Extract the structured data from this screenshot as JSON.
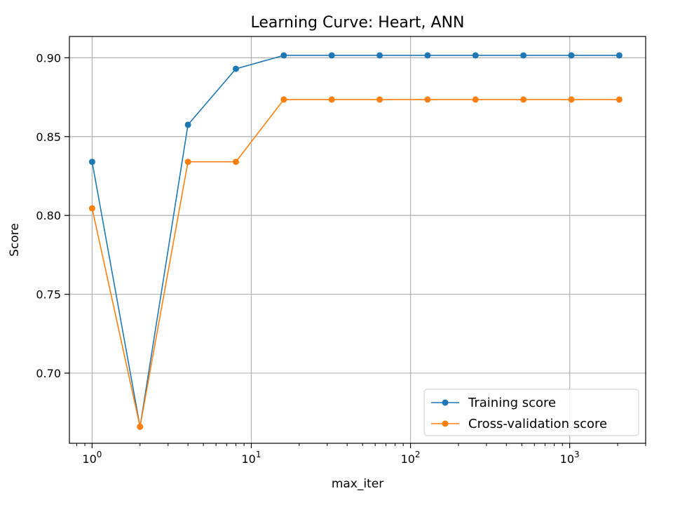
{
  "chart_data": {
    "type": "line",
    "title": "Learning Curve: Heart, ANN",
    "xlabel": "max_iter",
    "ylabel": "Score",
    "x_scale": "log",
    "xlim": [
      0.72,
      3000
    ],
    "ylim": [
      0.6555,
      0.9135
    ],
    "grid": true,
    "legend_position": "lower-right",
    "x_tick_labels": [
      {
        "base": "10",
        "exp": "0",
        "value": 1
      },
      {
        "base": "10",
        "exp": "1",
        "value": 10
      },
      {
        "base": "10",
        "exp": "2",
        "value": 100
      },
      {
        "base": "10",
        "exp": "3",
        "value": 1000
      }
    ],
    "y_ticks": [
      0.7,
      0.75,
      0.8,
      0.85,
      0.9
    ],
    "y_tick_labels": [
      "0.70",
      "0.75",
      "0.80",
      "0.85",
      "0.90"
    ],
    "x": [
      1,
      2,
      4,
      8,
      16,
      32,
      64,
      128,
      256,
      512,
      1024,
      2048
    ],
    "series": [
      {
        "name": "Training score",
        "color": "#1f77b4",
        "values": [
          0.834,
          0.666,
          0.8575,
          0.893,
          0.9015,
          0.9015,
          0.9015,
          0.9015,
          0.9015,
          0.9015,
          0.9015,
          0.9015
        ]
      },
      {
        "name": "Cross-validation score",
        "color": "#ff7f0e",
        "values": [
          0.8045,
          0.666,
          0.834,
          0.834,
          0.8735,
          0.8735,
          0.8735,
          0.8735,
          0.8735,
          0.8735,
          0.8735,
          0.8735
        ]
      }
    ]
  }
}
